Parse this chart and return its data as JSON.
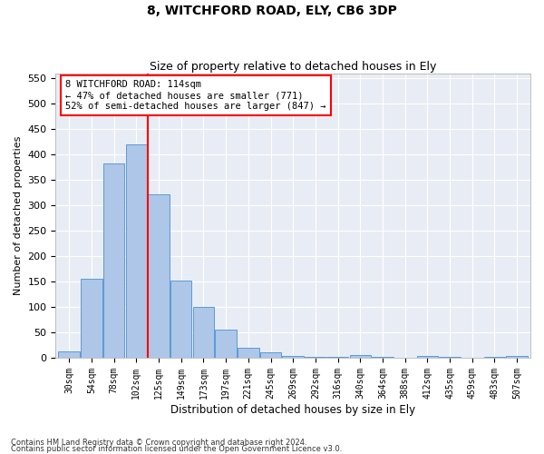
{
  "title1": "8, WITCHFORD ROAD, ELY, CB6 3DP",
  "title2": "Size of property relative to detached houses in Ely",
  "xlabel": "Distribution of detached houses by size in Ely",
  "ylabel": "Number of detached properties",
  "bar_labels": [
    "30sqm",
    "54sqm",
    "78sqm",
    "102sqm",
    "125sqm",
    "149sqm",
    "173sqm",
    "197sqm",
    "221sqm",
    "245sqm",
    "269sqm",
    "292sqm",
    "316sqm",
    "340sqm",
    "364sqm",
    "388sqm",
    "412sqm",
    "435sqm",
    "459sqm",
    "483sqm",
    "507sqm"
  ],
  "bar_heights": [
    13,
    155,
    382,
    420,
    322,
    152,
    100,
    55,
    20,
    10,
    3,
    2,
    1,
    5,
    1,
    0,
    3,
    1,
    0,
    1,
    3
  ],
  "bar_color": "#aec6e8",
  "bar_edge_color": "#5b9bd5",
  "background_color": "#e8edf5",
  "grid_color": "#ffffff",
  "annotation_line1": "8 WITCHFORD ROAD: 114sqm",
  "annotation_line2": "← 47% of detached houses are smaller (771)",
  "annotation_line3": "52% of semi-detached houses are larger (847) →",
  "vline_x": 3.5,
  "ylim": [
    0,
    560
  ],
  "yticks": [
    0,
    50,
    100,
    150,
    200,
    250,
    300,
    350,
    400,
    450,
    500,
    550
  ],
  "footnote1": "Contains HM Land Registry data © Crown copyright and database right 2024.",
  "footnote2": "Contains public sector information licensed under the Open Government Licence v3.0."
}
